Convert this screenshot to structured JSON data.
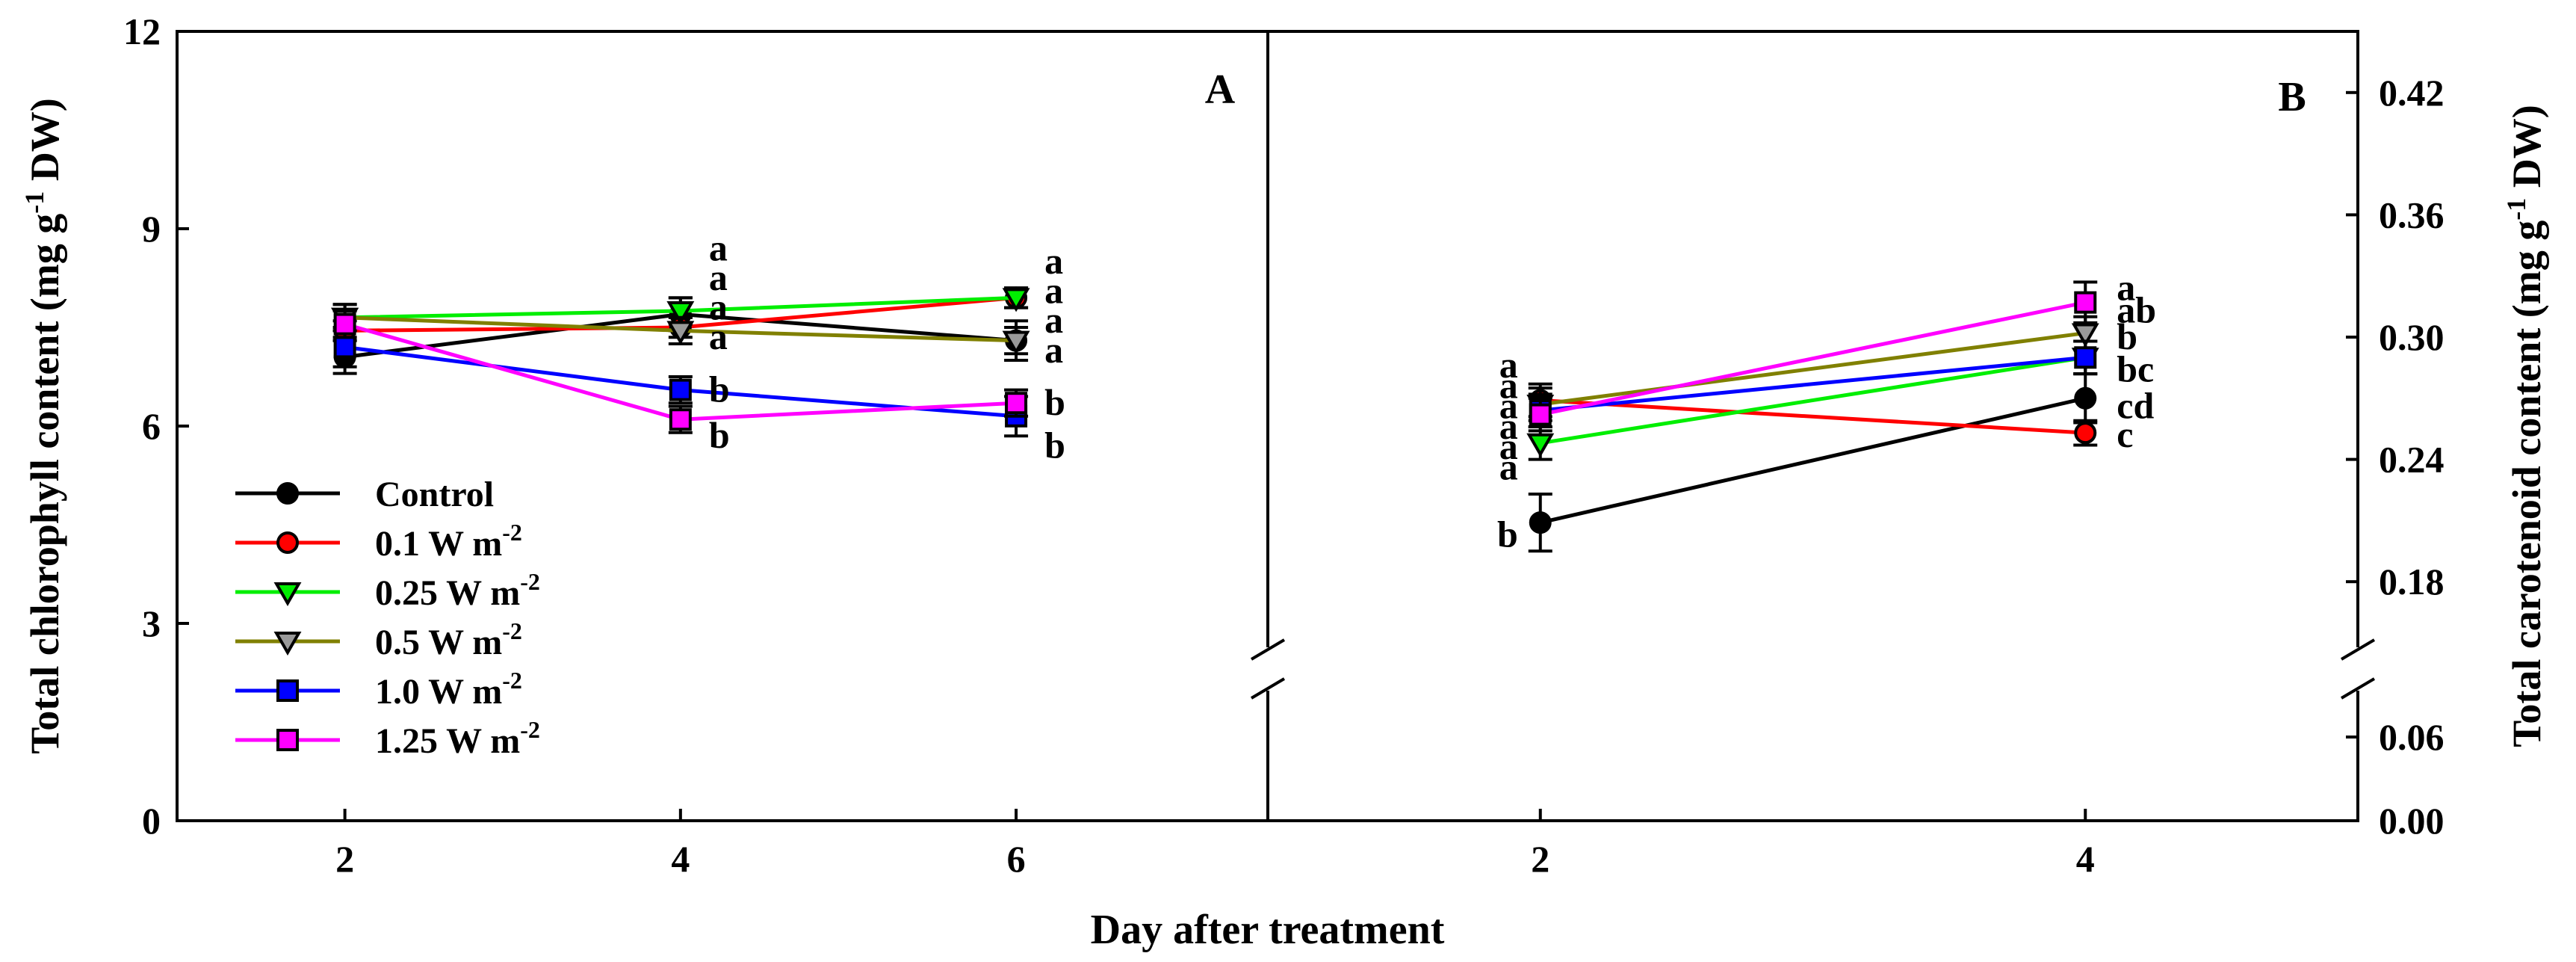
{
  "chart_data": [
    {
      "panel": "A",
      "type": "line",
      "panel_label": "A",
      "xlabel": "Day after treatment",
      "ylabel": "Total chlorophyll content",
      "ylabel_unit": "(mg g",
      "ylabel_sup": "-1",
      "ylabel_tail": " DW)",
      "xlim": [
        1,
        7.5
      ],
      "ylim": [
        0,
        12
      ],
      "x_ticks": [
        2,
        4,
        6
      ],
      "x_tick_labels": [
        "2",
        "4",
        "6"
      ],
      "y_ticks": [
        0,
        3,
        6,
        9,
        12
      ],
      "y_tick_labels": [
        "0",
        "3",
        "6",
        "9",
        "12"
      ],
      "x": [
        2,
        4,
        6
      ],
      "series": [
        {
          "name": "Control",
          "values": [
            7.05,
            7.7,
            7.3
          ],
          "errors": [
            0.25,
            0.25,
            0.3
          ]
        },
        {
          "name": "0.1 W m-2",
          "values": [
            7.45,
            7.5,
            7.95
          ],
          "errors": [
            0.15,
            0.15,
            0.15
          ]
        },
        {
          "name": "0.25 W m-2",
          "values": [
            7.65,
            7.75,
            7.95
          ],
          "errors": [
            0.2,
            0.2,
            0.15
          ]
        },
        {
          "name": "0.5 W m-2",
          "values": [
            7.65,
            7.45,
            7.3
          ],
          "errors": [
            0.2,
            0.2,
            0.2
          ]
        },
        {
          "name": "1.0 W m-2",
          "values": [
            7.2,
            6.55,
            6.15
          ],
          "errors": [
            0.3,
            0.2,
            0.3
          ]
        },
        {
          "name": "1.25 W m-2",
          "values": [
            7.55,
            6.1,
            6.35
          ],
          "errors": [
            0.2,
            0.2,
            0.2
          ]
        }
      ],
      "annotations": [
        {
          "x": 4,
          "y": 8.7,
          "text": "a"
        },
        {
          "x": 4,
          "y": 8.25,
          "text": "a"
        },
        {
          "x": 4,
          "y": 7.8,
          "text": "a"
        },
        {
          "x": 4,
          "y": 7.35,
          "text": "a"
        },
        {
          "x": 4,
          "y": 6.55,
          "text": "b"
        },
        {
          "x": 4,
          "y": 5.85,
          "text": "b"
        },
        {
          "x": 6,
          "y": 8.5,
          "text": "a"
        },
        {
          "x": 6,
          "y": 8.05,
          "text": "a"
        },
        {
          "x": 6,
          "y": 7.6,
          "text": "a"
        },
        {
          "x": 6,
          "y": 7.15,
          "text": "a"
        },
        {
          "x": 6,
          "y": 6.35,
          "text": "b"
        },
        {
          "x": 6,
          "y": 5.7,
          "text": "b"
        }
      ]
    },
    {
      "panel": "B",
      "type": "line",
      "panel_label": "B",
      "ylabel": "Total carotenoid content",
      "ylabel_unit": "(mg g",
      "ylabel_sup": "-1",
      "ylabel_tail": " DW)",
      "xlim": [
        1,
        5
      ],
      "y_axis_break": true,
      "ylim_lower": [
        0,
        0.09
      ],
      "ylim_upper": [
        0.15,
        0.45
      ],
      "x_ticks": [
        2,
        4
      ],
      "x_tick_labels": [
        "2",
        "4"
      ],
      "y_ticks": [
        0,
        0.06,
        0.18,
        0.24,
        0.3,
        0.36,
        0.42
      ],
      "y_tick_labels": [
        "0.00",
        "0.06",
        "0.18",
        "0.24",
        "0.30",
        "0.36",
        "0.42"
      ],
      "x": [
        2,
        4
      ],
      "series": [
        {
          "name": "Control",
          "values": [
            0.209,
            0.27
          ],
          "errors": [
            0.014,
            0.012
          ]
        },
        {
          "name": "0.1 W m-2",
          "values": [
            0.269,
            0.253
          ],
          "errors": [
            0.008,
            0.006
          ]
        },
        {
          "name": "0.25 W m-2",
          "values": [
            0.248,
            0.29
          ],
          "errors": [
            0.008,
            0.008
          ]
        },
        {
          "name": "0.5 W m-2",
          "values": [
            0.267,
            0.302
          ],
          "errors": [
            0.008,
            0.008
          ]
        },
        {
          "name": "1.0 W m-2",
          "values": [
            0.264,
            0.29
          ],
          "errors": [
            0.008,
            0.008
          ]
        },
        {
          "name": "1.25 W m-2",
          "values": [
            0.262,
            0.317
          ],
          "errors": [
            0.008,
            0.01
          ]
        }
      ],
      "annotations": [
        {
          "x": 2,
          "y": 0.286,
          "side": "left",
          "text": "a"
        },
        {
          "x": 2,
          "y": 0.276,
          "side": "left",
          "text": "a"
        },
        {
          "x": 2,
          "y": 0.266,
          "side": "left",
          "text": "a"
        },
        {
          "x": 2,
          "y": 0.256,
          "side": "left",
          "text": "a"
        },
        {
          "x": 2,
          "y": 0.246,
          "side": "left",
          "text": "a"
        },
        {
          "x": 2,
          "y": 0.236,
          "side": "left",
          "text": "a"
        },
        {
          "x": 2,
          "y": 0.203,
          "side": "left",
          "text": "b"
        },
        {
          "x": 4,
          "y": 0.324,
          "side": "right",
          "text": "a"
        },
        {
          "x": 4,
          "y": 0.313,
          "side": "right",
          "text": "ab"
        },
        {
          "x": 4,
          "y": 0.3,
          "side": "right",
          "text": "b"
        },
        {
          "x": 4,
          "y": 0.284,
          "side": "right",
          "text": "bc"
        },
        {
          "x": 4,
          "y": 0.266,
          "side": "right",
          "text": "cd"
        },
        {
          "x": 4,
          "y": 0.252,
          "side": "right",
          "text": "c"
        }
      ]
    }
  ],
  "legend": {
    "placement": "lower-left of panel A",
    "entries": [
      {
        "label": "Control",
        "unit": "",
        "sup": "",
        "color": "#000000",
        "marker_fill": "#000000",
        "marker": "circle"
      },
      {
        "label": "0.1 W m",
        "unit": "",
        "sup": "-2",
        "color": "#ff0000",
        "marker_fill": "#ff0000",
        "marker": "circle"
      },
      {
        "label": "0.25 W m",
        "unit": "",
        "sup": "-2",
        "color": "#00ee00",
        "marker_fill": "#00ee00",
        "marker": "triangle-down"
      },
      {
        "label": "0.5 W m",
        "unit": "",
        "sup": "-2",
        "color": "#808000",
        "marker_fill": "#9a9a9a",
        "marker": "triangle-down"
      },
      {
        "label": "1.0 W m",
        "unit": "",
        "sup": "-2",
        "color": "#0000ff",
        "marker_fill": "#0000ff",
        "marker": "square"
      },
      {
        "label": "1.25 W m",
        "unit": "",
        "sup": "-2",
        "color": "#ff00ff",
        "marker_fill": "#ff00ff",
        "marker": "square"
      }
    ]
  }
}
